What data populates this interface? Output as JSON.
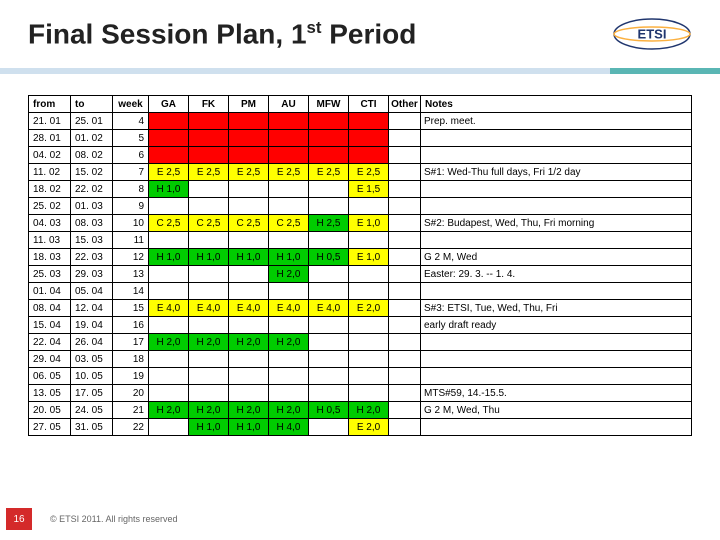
{
  "title": "Final Session Plan, 1",
  "title_sup": "st",
  "title_tail": " Period",
  "logo_text": "ETSI",
  "page_number": "16",
  "copyright": "© ETSI 2011. All rights reserved",
  "colors": {
    "red": "#ff0000",
    "yellow": "#ffff00",
    "green": "#00cc00"
  },
  "headers": [
    "from",
    "to",
    "week",
    "GA",
    "FK",
    "PM",
    "AU",
    "MFW",
    "CTI",
    "Other",
    "Notes"
  ],
  "rows": [
    {
      "from": "21. 01",
      "to": "25. 01",
      "week": "4",
      "cells": [
        {
          "bg": "red"
        },
        {
          "bg": "red"
        },
        {
          "bg": "red"
        },
        {
          "bg": "red"
        },
        {
          "bg": "red"
        },
        {
          "bg": "red"
        },
        {}
      ],
      "notes": "Prep. meet."
    },
    {
      "from": "28. 01",
      "to": "01. 02",
      "week": "5",
      "cells": [
        {
          "bg": "red"
        },
        {
          "bg": "red"
        },
        {
          "bg": "red"
        },
        {
          "bg": "red"
        },
        {
          "bg": "red"
        },
        {
          "bg": "red"
        },
        {}
      ],
      "notes": ""
    },
    {
      "from": "04. 02",
      "to": "08. 02",
      "week": "6",
      "cells": [
        {
          "bg": "red"
        },
        {
          "bg": "red"
        },
        {
          "bg": "red"
        },
        {
          "bg": "red"
        },
        {
          "bg": "red"
        },
        {
          "bg": "red"
        },
        {}
      ],
      "notes": ""
    },
    {
      "from": "11. 02",
      "to": "15. 02",
      "week": "7",
      "cells": [
        {
          "t": "E 2,5",
          "bg": "yellow"
        },
        {
          "t": "E 2,5",
          "bg": "yellow"
        },
        {
          "t": "E 2,5",
          "bg": "yellow"
        },
        {
          "t": "E 2,5",
          "bg": "yellow"
        },
        {
          "t": "E 2,5",
          "bg": "yellow"
        },
        {
          "t": "E 2,5",
          "bg": "yellow"
        },
        {}
      ],
      "notes": "S#1: Wed-Thu full days, Fri 1/2 day"
    },
    {
      "from": "18. 02",
      "to": "22. 02",
      "week": "8",
      "cells": [
        {
          "t": "H 1,0",
          "bg": "green"
        },
        {},
        {},
        {},
        {},
        {
          "t": "E 1,5",
          "bg": "yellow"
        },
        {}
      ],
      "notes": ""
    },
    {
      "from": "25. 02",
      "to": "01. 03",
      "week": "9",
      "cells": [
        {},
        {},
        {},
        {},
        {},
        {},
        {}
      ],
      "notes": ""
    },
    {
      "from": "04. 03",
      "to": "08. 03",
      "week": "10",
      "cells": [
        {
          "t": "C 2,5",
          "bg": "yellow"
        },
        {
          "t": "C 2,5",
          "bg": "yellow"
        },
        {
          "t": "C 2,5",
          "bg": "yellow"
        },
        {
          "t": "C 2,5",
          "bg": "yellow"
        },
        {
          "t": "H 2,5",
          "bg": "green"
        },
        {
          "t": "E 1,0",
          "bg": "yellow"
        },
        {}
      ],
      "notes": "S#2: Budapest, Wed, Thu, Fri morning"
    },
    {
      "from": "11. 03",
      "to": "15. 03",
      "week": "11",
      "cells": [
        {},
        {},
        {},
        {},
        {},
        {},
        {}
      ],
      "notes": ""
    },
    {
      "from": "18. 03",
      "to": "22. 03",
      "week": "12",
      "cells": [
        {
          "t": "H 1,0",
          "bg": "green"
        },
        {
          "t": "H 1,0",
          "bg": "green"
        },
        {
          "t": "H 1,0",
          "bg": "green"
        },
        {
          "t": "H 1,0",
          "bg": "green"
        },
        {
          "t": "H 0,5",
          "bg": "green"
        },
        {
          "t": "E 1,0",
          "bg": "yellow"
        },
        {}
      ],
      "notes": "G 2 M, Wed"
    },
    {
      "from": "25. 03",
      "to": "29. 03",
      "week": "13",
      "cells": [
        {},
        {},
        {},
        {
          "t": "H 2,0",
          "bg": "green"
        },
        {},
        {},
        {}
      ],
      "notes": "Easter: 29. 3. -- 1. 4."
    },
    {
      "from": "01. 04",
      "to": "05. 04",
      "week": "14",
      "cells": [
        {},
        {},
        {},
        {},
        {},
        {},
        {}
      ],
      "notes": ""
    },
    {
      "from": "08. 04",
      "to": "12. 04",
      "week": "15",
      "cells": [
        {
          "t": "E 4,0",
          "bg": "yellow"
        },
        {
          "t": "E 4,0",
          "bg": "yellow"
        },
        {
          "t": "E 4,0",
          "bg": "yellow"
        },
        {
          "t": "E 4,0",
          "bg": "yellow"
        },
        {
          "t": "E 4,0",
          "bg": "yellow"
        },
        {
          "t": "E 2,0",
          "bg": "yellow"
        },
        {}
      ],
      "notes": "S#3: ETSI, Tue, Wed, Thu, Fri"
    },
    {
      "from": "15. 04",
      "to": "19. 04",
      "week": "16",
      "cells": [
        {},
        {},
        {},
        {},
        {},
        {},
        {}
      ],
      "notes": "early draft ready"
    },
    {
      "from": "22. 04",
      "to": "26. 04",
      "week": "17",
      "cells": [
        {
          "t": "H 2,0",
          "bg": "green"
        },
        {
          "t": "H 2,0",
          "bg": "green"
        },
        {
          "t": "H 2,0",
          "bg": "green"
        },
        {
          "t": "H 2,0",
          "bg": "green"
        },
        {},
        {},
        {}
      ],
      "notes": ""
    },
    {
      "from": "29. 04",
      "to": "03. 05",
      "week": "18",
      "cells": [
        {},
        {},
        {},
        {},
        {},
        {},
        {}
      ],
      "notes": ""
    },
    {
      "from": "06. 05",
      "to": "10. 05",
      "week": "19",
      "cells": [
        {},
        {},
        {},
        {},
        {},
        {},
        {}
      ],
      "notes": ""
    },
    {
      "from": "13. 05",
      "to": "17. 05",
      "week": "20",
      "cells": [
        {},
        {},
        {},
        {},
        {},
        {},
        {}
      ],
      "notes": "MTS#59, 14.-15.5."
    },
    {
      "from": "20. 05",
      "to": "24. 05",
      "week": "21",
      "cells": [
        {
          "t": "H 2,0",
          "bg": "green"
        },
        {
          "t": "H 2,0",
          "bg": "green"
        },
        {
          "t": "H 2,0",
          "bg": "green"
        },
        {
          "t": "H 2,0",
          "bg": "green"
        },
        {
          "t": "H 0,5",
          "bg": "green"
        },
        {
          "t": "H 2,0",
          "bg": "green"
        },
        {}
      ],
      "notes": "G 2 M, Wed, Thu"
    },
    {
      "from": "27. 05",
      "to": "31. 05",
      "week": "22",
      "cells": [
        {},
        {
          "t": "H 1,0",
          "bg": "green"
        },
        {
          "t": "H 1,0",
          "bg": "green"
        },
        {
          "t": "H 4,0",
          "bg": "green"
        },
        {},
        {
          "t": "E 2,0",
          "bg": "yellow"
        },
        {}
      ],
      "notes": ""
    }
  ]
}
